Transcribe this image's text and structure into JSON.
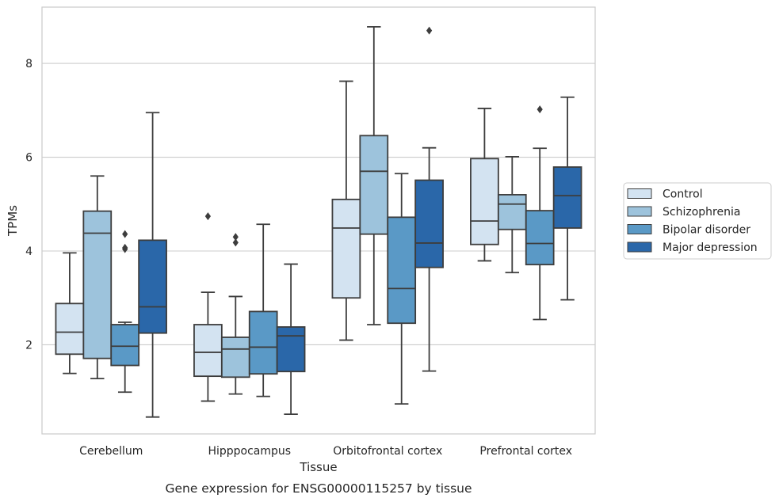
{
  "chart_data": {
    "type": "boxplot",
    "caption": "Gene expression for ENSG00000115257 by tissue",
    "xlabel": "Tissue",
    "ylabel": "TPMs",
    "ylim": [
      0.1,
      9.2
    ],
    "yticks": [
      2,
      4,
      6,
      8
    ],
    "grid": "horizontal",
    "legend_position": "right",
    "categories": [
      "Cerebellum",
      "Hipppocampus",
      "Orbitofrontal cortex",
      "Prefrontal cortex"
    ],
    "series": [
      {
        "name": "Control",
        "color": "#d3e3f1",
        "boxes": [
          {
            "whislo": 1.39,
            "q1": 1.8,
            "med": 2.27,
            "q3": 2.88,
            "whishi": 3.96,
            "fliers": []
          },
          {
            "whislo": 0.8,
            "q1": 1.33,
            "med": 1.84,
            "q3": 2.43,
            "whishi": 3.12,
            "fliers": [
              4.74
            ]
          },
          {
            "whislo": 2.1,
            "q1": 3.0,
            "med": 4.49,
            "q3": 5.1,
            "whishi": 7.62,
            "fliers": []
          },
          {
            "whislo": 3.79,
            "q1": 4.14,
            "med": 4.64,
            "q3": 5.97,
            "whishi": 7.04,
            "fliers": []
          }
        ]
      },
      {
        "name": "Schizophrenia",
        "color": "#9dc3dc",
        "boxes": [
          {
            "whislo": 1.28,
            "q1": 1.71,
            "med": 4.38,
            "q3": 4.85,
            "whishi": 5.6,
            "fliers": []
          },
          {
            "whislo": 0.95,
            "q1": 1.31,
            "med": 1.91,
            "q3": 2.16,
            "whishi": 3.03,
            "fliers": [
              4.18,
              4.3
            ]
          },
          {
            "whislo": 2.43,
            "q1": 4.36,
            "med": 5.7,
            "q3": 6.46,
            "whishi": 8.78,
            "fliers": []
          },
          {
            "whislo": 3.54,
            "q1": 4.46,
            "med": 5.0,
            "q3": 5.2,
            "whishi": 6.01,
            "fliers": []
          }
        ]
      },
      {
        "name": "Bipolar disorder",
        "color": "#5a99c6",
        "boxes": [
          {
            "whislo": 0.99,
            "q1": 1.56,
            "med": 1.97,
            "q3": 2.43,
            "whishi": 2.48,
            "fliers": [
              4.04,
              4.07,
              4.36
            ]
          },
          {
            "whislo": 0.9,
            "q1": 1.38,
            "med": 1.95,
            "q3": 2.71,
            "whishi": 4.57,
            "fliers": []
          },
          {
            "whislo": 0.74,
            "q1": 2.46,
            "med": 3.2,
            "q3": 4.72,
            "whishi": 5.65,
            "fliers": []
          },
          {
            "whislo": 2.54,
            "q1": 3.71,
            "med": 4.16,
            "q3": 4.86,
            "whishi": 6.19,
            "fliers": [
              7.02
            ]
          }
        ]
      },
      {
        "name": "Major depression",
        "color": "#2a67a9",
        "boxes": [
          {
            "whislo": 0.46,
            "q1": 2.25,
            "med": 2.81,
            "q3": 4.23,
            "whishi": 6.95,
            "fliers": []
          },
          {
            "whislo": 0.52,
            "q1": 1.43,
            "med": 2.19,
            "q3": 2.38,
            "whishi": 3.72,
            "fliers": []
          },
          {
            "whislo": 1.44,
            "q1": 3.65,
            "med": 4.17,
            "q3": 5.51,
            "whishi": 6.2,
            "fliers": [
              8.7
            ]
          },
          {
            "whislo": 2.96,
            "q1": 4.49,
            "med": 5.18,
            "q3": 5.79,
            "whishi": 7.28,
            "fliers": []
          }
        ]
      }
    ]
  }
}
